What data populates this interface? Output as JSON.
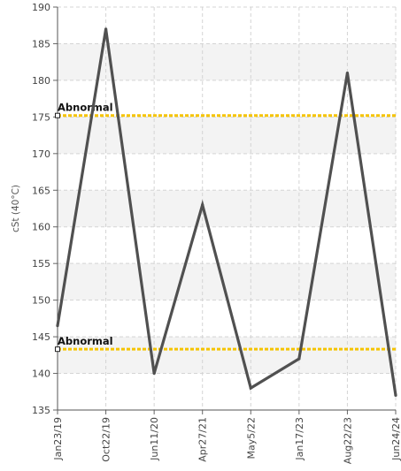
{
  "chart_data": {
    "type": "line",
    "title": "",
    "xlabel": "",
    "ylabel": "cSt (40°C)",
    "categories": [
      "Jan23/19",
      "Oct22/19",
      "Jun11/20",
      "Apr27/21",
      "May5/22",
      "Jan17/23",
      "Aug22/23",
      "Jun24/24"
    ],
    "series": [
      {
        "values": [
          146.5,
          187,
          140,
          163,
          138,
          142,
          181,
          137
        ]
      }
    ],
    "ylim": [
      135,
      190
    ],
    "yticks": [
      135,
      140,
      145,
      150,
      155,
      160,
      165,
      170,
      175,
      180,
      185,
      190
    ],
    "reference_lines": [
      {
        "label": "Abnormal",
        "value": 175.2
      },
      {
        "label": "Abnormal",
        "value": 143.3
      }
    ],
    "grid": true,
    "legend": "none",
    "colors": {
      "series_line": "#505050",
      "reference_line": "#f5c400",
      "grid": "#d4d4d4",
      "band": "#f3f3f3"
    }
  }
}
